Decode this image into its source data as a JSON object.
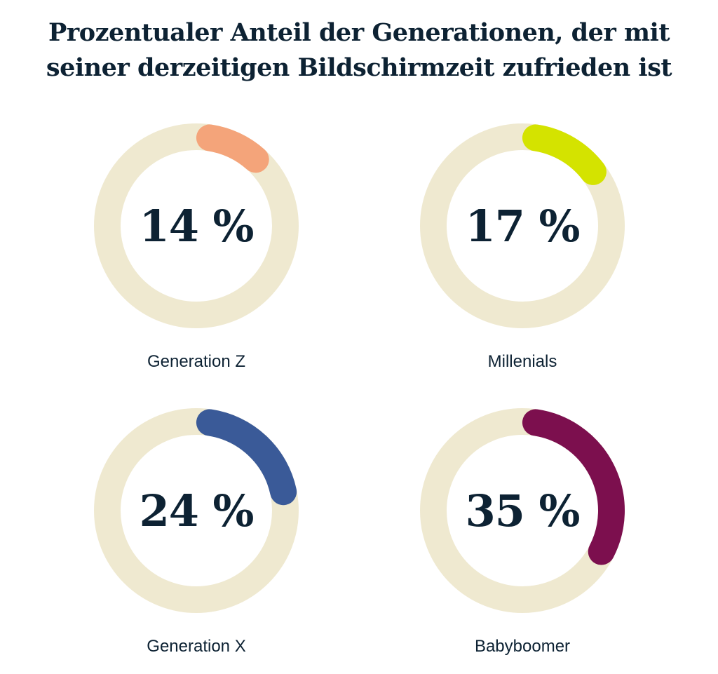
{
  "chart_data": {
    "type": "donut",
    "title_lines": [
      "Prozentualer Anteil der Generationen, der mit",
      "seiner derzeitigen Bildschirmzeit zufrieden ist"
    ],
    "unit": "%",
    "track_color": "#efe9d0",
    "items": [
      {
        "label": "Generation Z",
        "value": 14,
        "display": "14 %",
        "color": "#f4a47a"
      },
      {
        "label": "Millenials",
        "value": 17,
        "display": "17 %",
        "color": "#d4e300"
      },
      {
        "label": "Generation X",
        "value": 24,
        "display": "24 %",
        "color": "#3a5a98"
      },
      {
        "label": "Babyboomer",
        "value": 35,
        "display": "35 %",
        "color": "#7c0f4e"
      }
    ]
  }
}
